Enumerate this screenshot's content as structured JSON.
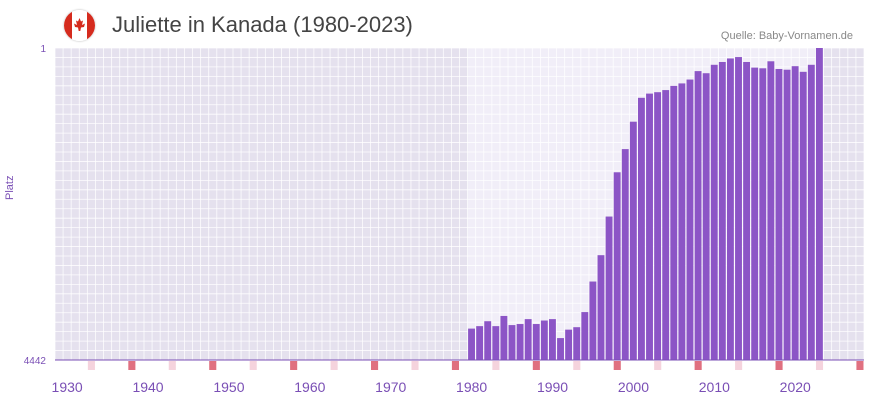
{
  "title": "Juliette in Kanada (1980-2023)",
  "source": "Quelle: Baby-Vornamen.de",
  "flag_icon": "canada-flag-icon",
  "colors": {
    "bar": "#8c55c6",
    "band_dark": "#e5e1ee",
    "band_light": "#f1eef8",
    "axis": "#7a4fb5",
    "tick_red": "#e07080",
    "tick_pink": "#f5d3dd"
  },
  "chart_data": {
    "type": "bar",
    "title": "Juliette in Kanada (1980-2023)",
    "xlabel": "",
    "ylabel": "Platz",
    "y_ticks": [
      "1",
      "4442"
    ],
    "ylim": [
      1,
      4442
    ],
    "y_inverted": true,
    "xlim": [
      1929,
      2029
    ],
    "x_ticks": [
      "1930",
      "1940",
      "1950",
      "1960",
      "1970",
      "1980",
      "1990",
      "2000",
      "2010",
      "2020"
    ],
    "categories": [
      1980,
      1981,
      1982,
      1983,
      1984,
      1985,
      1986,
      1987,
      1988,
      1989,
      1990,
      1991,
      1992,
      1993,
      1994,
      1995,
      1996,
      1997,
      1998,
      1999,
      2000,
      2001,
      2002,
      2003,
      2004,
      2005,
      2006,
      2007,
      2008,
      2009,
      2010,
      2011,
      2012,
      2013,
      2014,
      2015,
      2016,
      2017,
      2018,
      2019,
      2020,
      2021,
      2022,
      2023
    ],
    "values": [
      3995,
      3960,
      3890,
      3960,
      3815,
      3945,
      3930,
      3860,
      3930,
      3880,
      3860,
      4130,
      4010,
      3975,
      3760,
      3325,
      2950,
      2400,
      1770,
      1440,
      1050,
      710,
      650,
      630,
      600,
      540,
      505,
      450,
      330,
      360,
      240,
      200,
      150,
      130,
      200,
      280,
      290,
      190,
      300,
      310,
      260,
      340,
      240,
      1
    ]
  }
}
